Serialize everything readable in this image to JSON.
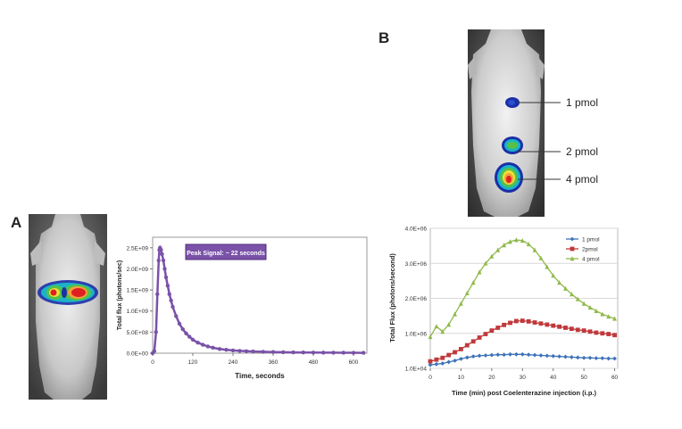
{
  "panel_a": {
    "letter": "A",
    "chart_data": {
      "type": "scatter",
      "title": "",
      "xlabel": "Time, seconds",
      "ylabel": "Total flux (photons/sec)",
      "xlim": [
        0,
        640
      ],
      "ylim": [
        0,
        2750000000.0
      ],
      "x_ticks": [
        "0",
        "120",
        "240",
        "360",
        "480",
        "600"
      ],
      "y_ticks": [
        "0.0E+00",
        "5.0E+08",
        "1.0E+09",
        "1.5E+09",
        "2.0E+09",
        "2.5E+09"
      ],
      "annotation": "Peak Signal: ~ 22 seconds",
      "color": "#7a52a8",
      "x": [
        0,
        5,
        10,
        14,
        18,
        20,
        22,
        25,
        28,
        32,
        36,
        40,
        45,
        50,
        55,
        60,
        70,
        80,
        90,
        100,
        110,
        120,
        135,
        150,
        165,
        180,
        200,
        220,
        240,
        260,
        280,
        300,
        330,
        360,
        390,
        420,
        450,
        480,
        510,
        540,
        570,
        600,
        630
      ],
      "y": [
        0,
        50000000.0,
        500000000.0,
        1400000000.0,
        2200000000.0,
        2450000000.0,
        2500000000.0,
        2450000000.0,
        2350000000.0,
        2200000000.0,
        2000000000.0,
        1800000000.0,
        1600000000.0,
        1400000000.0,
        1250000000.0,
        1100000000.0,
        880000000.0,
        700000000.0,
        570000000.0,
        470000000.0,
        390000000.0,
        320000000.0,
        250000000.0,
        200000000.0,
        160000000.0,
        130000000.0,
        100000000.0,
        80000000.0,
        65000000.0,
        55000000.0,
        47000000.0,
        40000000.0,
        33000000.0,
        27000000.0,
        23000000.0,
        20000000.0,
        17000000.0,
        15000000.0,
        13000000.0,
        12000000.0,
        11000000.0,
        10000000.0,
        9000000.0
      ]
    }
  },
  "panel_b": {
    "letter": "B",
    "image_labels": [
      "1 pmol",
      "2 pmol",
      "4 pmol"
    ],
    "chart_data": {
      "type": "line",
      "title": "",
      "xlabel": "Time (min) post Coelenterazine injection (i.p.)",
      "ylabel": "Total Flux (photons/second)",
      "xlim": [
        0,
        61
      ],
      "ylim": [
        0,
        4
      ],
      "x_ticks": [
        "0",
        "10",
        "20",
        "30",
        "40",
        "50",
        "60"
      ],
      "y_ticks": [
        "1.0E+04",
        "1.0E+06",
        "2.0E+06",
        "3.0E+06",
        "4.0E+06"
      ],
      "legend_position": "top-right",
      "x": [
        0,
        2,
        4,
        6,
        8,
        10,
        12,
        14,
        16,
        18,
        20,
        22,
        24,
        26,
        28,
        30,
        32,
        34,
        36,
        38,
        40,
        42,
        44,
        46,
        48,
        50,
        52,
        54,
        56,
        58,
        60
      ],
      "series": [
        {
          "name": "1 pmol",
          "color": "#3d72b8",
          "marker": "diamond",
          "values": [
            0.1,
            0.12,
            0.14,
            0.18,
            0.22,
            0.27,
            0.31,
            0.34,
            0.36,
            0.37,
            0.38,
            0.39,
            0.39,
            0.4,
            0.4,
            0.4,
            0.39,
            0.38,
            0.37,
            0.36,
            0.35,
            0.34,
            0.33,
            0.32,
            0.31,
            0.3,
            0.3,
            0.29,
            0.29,
            0.28,
            0.28
          ]
        },
        {
          "name": "2pmol",
          "color": "#c0393b",
          "marker": "square",
          "values": [
            0.2,
            0.25,
            0.3,
            0.38,
            0.46,
            0.55,
            0.66,
            0.77,
            0.88,
            0.98,
            1.08,
            1.16,
            1.24,
            1.3,
            1.35,
            1.36,
            1.34,
            1.31,
            1.28,
            1.25,
            1.22,
            1.19,
            1.16,
            1.13,
            1.1,
            1.08,
            1.05,
            1.02,
            1.0,
            0.98,
            0.95
          ]
        },
        {
          "name": "4 pmol",
          "color": "#8fb94a",
          "marker": "triangle",
          "values": [
            0.9,
            1.2,
            1.05,
            1.25,
            1.55,
            1.85,
            2.15,
            2.45,
            2.75,
            3.0,
            3.2,
            3.38,
            3.52,
            3.62,
            3.67,
            3.65,
            3.55,
            3.38,
            3.15,
            2.9,
            2.65,
            2.45,
            2.28,
            2.12,
            1.98,
            1.85,
            1.74,
            1.64,
            1.55,
            1.48,
            1.42
          ]
        }
      ]
    }
  }
}
